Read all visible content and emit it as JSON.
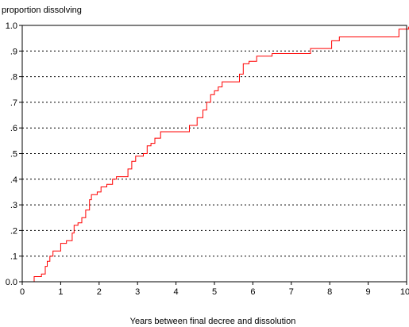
{
  "chart_data": {
    "type": "line",
    "title": "",
    "ylabel": "proportion dissolving",
    "xlabel": "Years between final decree and dissolution",
    "xlim": [
      0,
      10
    ],
    "ylim": [
      0,
      1
    ],
    "x_ticks": [
      0,
      1,
      2,
      3,
      4,
      5,
      6,
      7,
      8,
      9,
      10
    ],
    "x_tick_labels": [
      "0",
      "1",
      "2",
      "3",
      "4",
      "5",
      "6",
      "7",
      "8",
      "9",
      "10"
    ],
    "y_ticks": [
      0,
      0.1,
      0.2,
      0.3,
      0.4,
      0.5,
      0.6,
      0.7,
      0.8,
      0.9,
      1.0
    ],
    "y_tick_labels": [
      "0.0",
      ".1",
      ".2",
      ".3",
      ".4",
      ".5",
      ".6",
      ".7",
      ".8",
      ".9",
      "1.0"
    ],
    "grid": "horizontal dotted",
    "step": true,
    "line_color": "#ff0000",
    "series": [
      {
        "points": [
          [
            0.22,
            0.0
          ],
          [
            0.28,
            0.0
          ],
          [
            0.31,
            0.02
          ],
          [
            0.42,
            0.02
          ],
          [
            0.5,
            0.03
          ],
          [
            0.6,
            0.06
          ],
          [
            0.65,
            0.08
          ],
          [
            0.72,
            0.1
          ],
          [
            0.8,
            0.12
          ],
          [
            0.92,
            0.12
          ],
          [
            1.0,
            0.15
          ],
          [
            1.15,
            0.16
          ],
          [
            1.25,
            0.16
          ],
          [
            1.3,
            0.19
          ],
          [
            1.35,
            0.22
          ],
          [
            1.45,
            0.23
          ],
          [
            1.55,
            0.25
          ],
          [
            1.65,
            0.28
          ],
          [
            1.75,
            0.32
          ],
          [
            1.8,
            0.34
          ],
          [
            1.95,
            0.35
          ],
          [
            2.05,
            0.37
          ],
          [
            2.2,
            0.38
          ],
          [
            2.35,
            0.4
          ],
          [
            2.45,
            0.41
          ],
          [
            2.65,
            0.41
          ],
          [
            2.75,
            0.44
          ],
          [
            2.85,
            0.47
          ],
          [
            2.95,
            0.49
          ],
          [
            3.15,
            0.5
          ],
          [
            3.25,
            0.53
          ],
          [
            3.35,
            0.54
          ],
          [
            3.45,
            0.56
          ],
          [
            3.6,
            0.585
          ],
          [
            4.2,
            0.585
          ],
          [
            4.35,
            0.61
          ],
          [
            4.55,
            0.64
          ],
          [
            4.7,
            0.67
          ],
          [
            4.8,
            0.7
          ],
          [
            4.9,
            0.73
          ],
          [
            5.0,
            0.745
          ],
          [
            5.1,
            0.76
          ],
          [
            5.2,
            0.78
          ],
          [
            5.55,
            0.78
          ],
          [
            5.65,
            0.81
          ],
          [
            5.75,
            0.85
          ],
          [
            5.9,
            0.86
          ],
          [
            6.1,
            0.88
          ],
          [
            6.4,
            0.88
          ],
          [
            6.5,
            0.89
          ],
          [
            7.3,
            0.89
          ],
          [
            7.5,
            0.91
          ],
          [
            7.9,
            0.91
          ],
          [
            8.05,
            0.94
          ],
          [
            8.25,
            0.955
          ],
          [
            9.7,
            0.955
          ],
          [
            9.8,
            0.985
          ],
          [
            10.0,
            0.985
          ],
          [
            10.05,
            0.995
          ]
        ]
      }
    ]
  }
}
